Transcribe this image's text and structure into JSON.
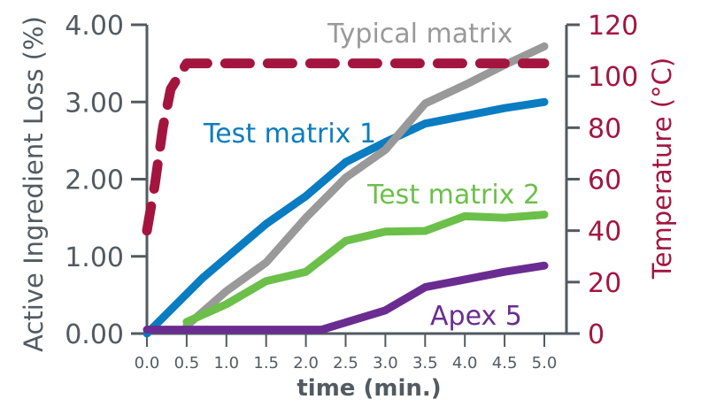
{
  "chart_data": {
    "type": "line",
    "xlabel": "time (min.)",
    "ylabel_left": "Active Ingredient Loss (%)",
    "ylabel_right": "Temperature (°C)",
    "x_ticks": [
      "0.0",
      "0.5",
      "1.0",
      "1.5",
      "2.0",
      "2.5",
      "3.0",
      "3.5",
      "4.0",
      "4.5",
      "5.0"
    ],
    "y_left_ticks": [
      "0.00",
      "1.00",
      "2.00",
      "3.00",
      "4.00"
    ],
    "y_right_ticks": [
      "0",
      "20",
      "40",
      "60",
      "80",
      "100",
      "120"
    ],
    "ylim_left": [
      0,
      4
    ],
    "ylim_right": [
      0,
      120
    ],
    "xlim": [
      0,
      5
    ],
    "grid": false,
    "series": [
      {
        "name": "Test matrix 1",
        "axis": "left",
        "color": "#0a7cc1",
        "style": "solid",
        "x": [
          0.0,
          0.7,
          1.5,
          2.0,
          2.5,
          3.0,
          3.5,
          4.0,
          4.5,
          5.0
        ],
        "values": [
          0.0,
          0.72,
          1.42,
          1.78,
          2.22,
          2.48,
          2.72,
          2.82,
          2.92,
          3.0
        ]
      },
      {
        "name": "Typical matrix",
        "axis": "left",
        "color": "#999999",
        "style": "solid",
        "x": [
          0.5,
          1.0,
          1.5,
          2.0,
          2.5,
          3.0,
          3.5,
          4.0,
          4.5,
          5.0
        ],
        "values": [
          0.1,
          0.55,
          0.92,
          1.5,
          2.02,
          2.38,
          2.98,
          3.22,
          3.48,
          3.72
        ]
      },
      {
        "name": "Test matrix 2",
        "axis": "left",
        "color": "#6cc04a",
        "style": "solid",
        "x": [
          0.5,
          1.0,
          1.5,
          2.0,
          2.5,
          3.0,
          3.5,
          4.0,
          4.5,
          5.0
        ],
        "values": [
          0.15,
          0.38,
          0.68,
          0.8,
          1.2,
          1.32,
          1.33,
          1.52,
          1.5,
          1.54
        ]
      },
      {
        "name": "Apex 5",
        "axis": "left",
        "color": "#6a2c91",
        "style": "solid",
        "x": [
          0.0,
          0.5,
          1.0,
          1.5,
          2.0,
          2.2,
          3.0,
          3.5,
          4.0,
          4.5,
          5.0
        ],
        "values": [
          0.05,
          0.05,
          0.05,
          0.05,
          0.05,
          0.05,
          0.3,
          0.6,
          0.7,
          0.8,
          0.88
        ]
      },
      {
        "name": "",
        "axis": "right",
        "color": "#a3153f",
        "style": "dashed",
        "x": [
          0.0,
          0.1,
          0.2,
          0.3,
          0.5,
          1.0,
          2.0,
          3.0,
          4.0,
          5.0
        ],
        "values": [
          40,
          58,
          80,
          95,
          105,
          105,
          105,
          105,
          105,
          105
        ]
      }
    ],
    "annotations": [
      {
        "text": "Typical matrix",
        "color": "#999999"
      },
      {
        "text": "Test matrix 1",
        "color": "#0a7cc1"
      },
      {
        "text": "Test matrix 2",
        "color": "#6cc04a"
      },
      {
        "text": "Apex 5",
        "color": "#6a2c91"
      }
    ]
  }
}
